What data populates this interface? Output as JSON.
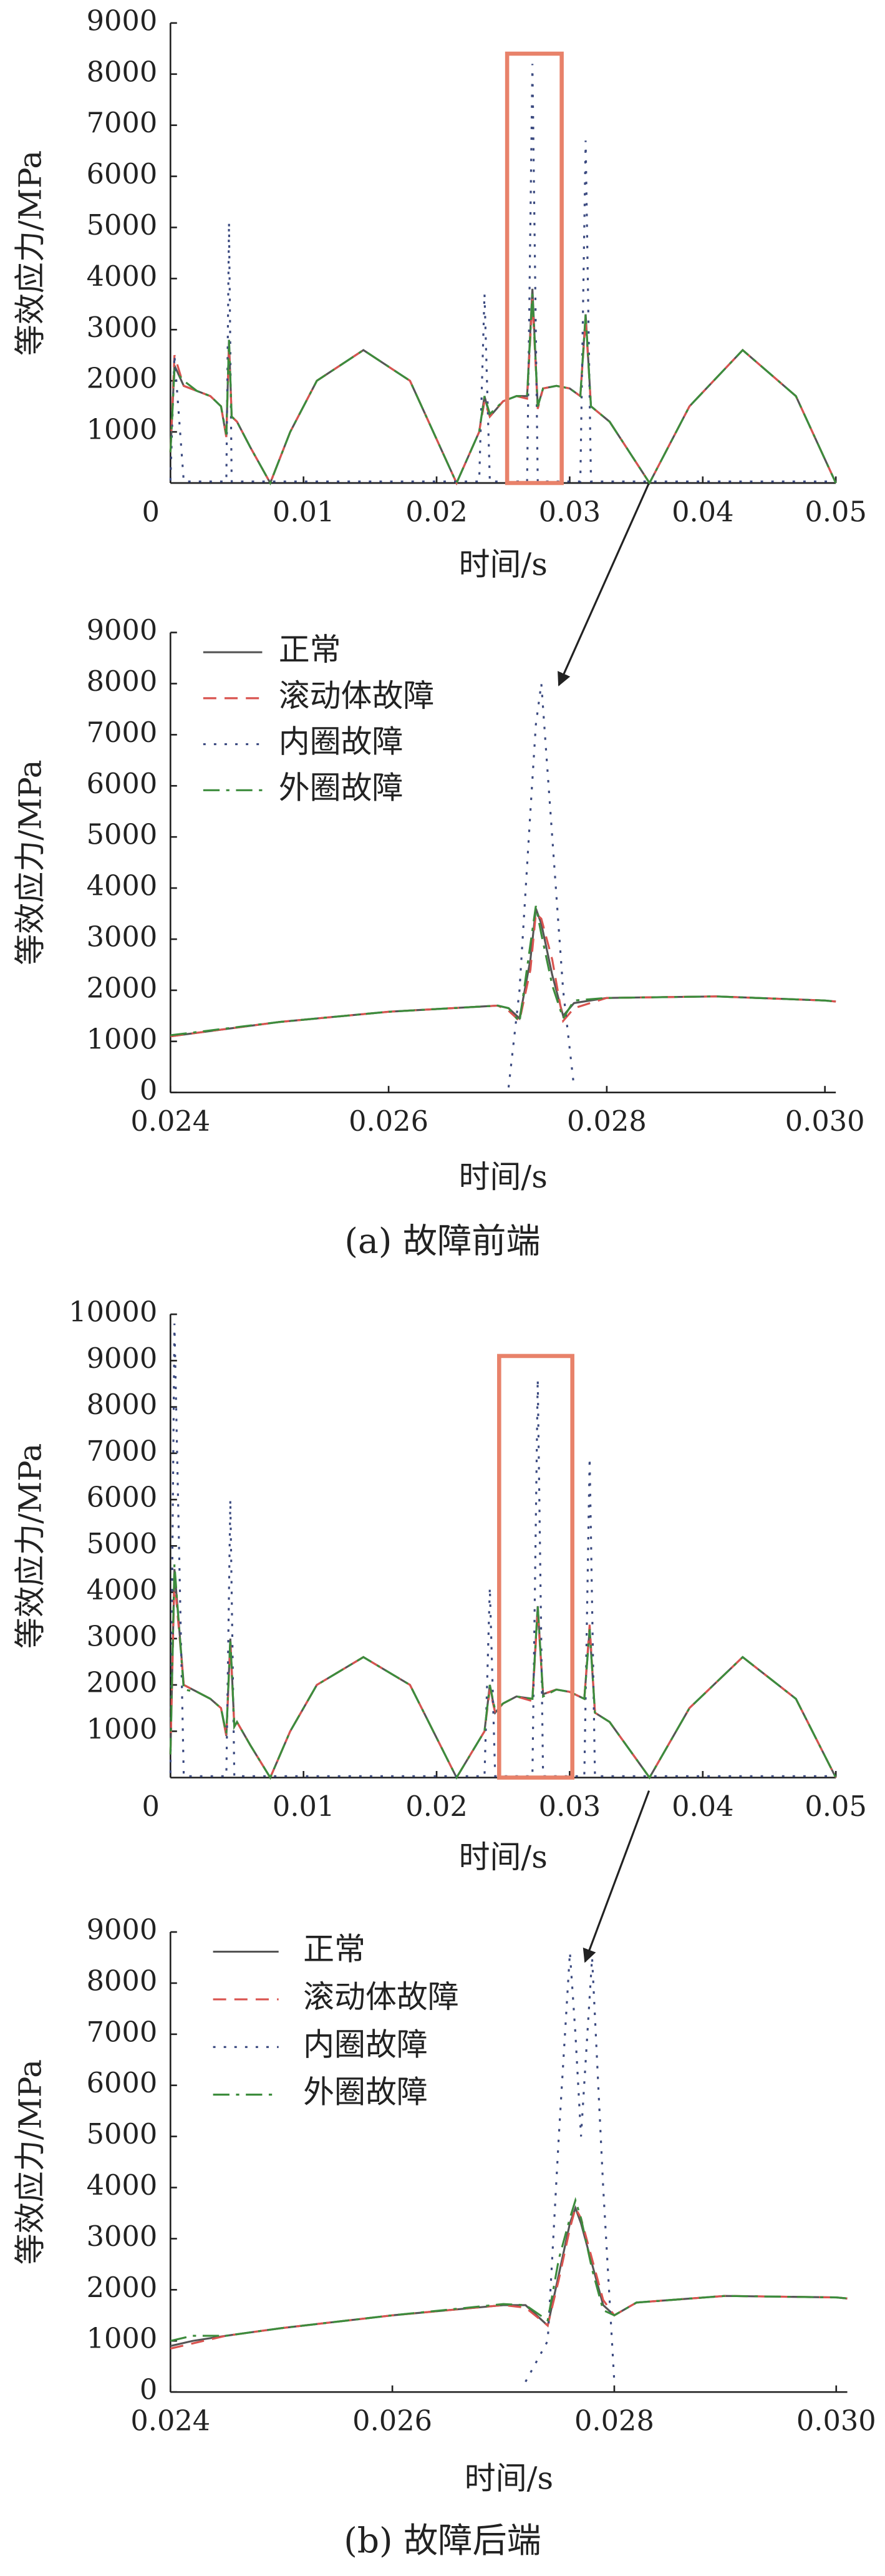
{
  "chart_data": [
    {
      "type": "line",
      "xlabel": "时间/s",
      "ylabel": "等效应力/MPa",
      "x": [
        0,
        0.0003,
        0.001,
        0.002,
        0.003,
        0.0038,
        0.0042,
        0.0044,
        0.0046,
        0.005,
        0.006,
        0.0075,
        0.009,
        0.011,
        0.0145,
        0.018,
        0.0215,
        0.0232,
        0.0236,
        0.024,
        0.025,
        0.026,
        0.0268,
        0.0272,
        0.0276,
        0.028,
        0.029,
        0.03,
        0.0308,
        0.0312,
        0.0316,
        0.033,
        0.036,
        0.039,
        0.043,
        0.047,
        0.05
      ],
      "series": [
        {
          "color": "#555555",
          "dash": "none",
          "values": [
            600,
            2300,
            1900,
            1800,
            1700,
            1500,
            900,
            2800,
            1300,
            1200,
            700,
            0,
            1000,
            2000,
            2600,
            2000,
            0,
            1000,
            1700,
            1300,
            1600,
            1700,
            1700,
            3800,
            1500,
            1850,
            1900,
            1850,
            1700,
            3300,
            1500,
            1200,
            0,
            1500,
            2600,
            1700,
            0
          ]
        },
        {
          "color": "#d9534f",
          "dash": "8,5",
          "values": [
            600,
            2500,
            1900,
            1800,
            1700,
            1500,
            900,
            2700,
            1300,
            1200,
            700,
            0,
            1000,
            2000,
            2600,
            2000,
            0,
            1000,
            1600,
            1300,
            1600,
            1700,
            1650,
            3600,
            1450,
            1850,
            1900,
            1850,
            1700,
            3200,
            1500,
            1200,
            0,
            1500,
            2600,
            1700,
            0
          ]
        },
        {
          "color": "#3b4a80",
          "dash": "1.5,5",
          "values": [
            50,
            2500,
            30,
            30,
            30,
            30,
            30,
            5100,
            30,
            30,
            30,
            30,
            30,
            30,
            30,
            30,
            30,
            30,
            3700,
            30,
            30,
            30,
            30,
            8200,
            30,
            30,
            30,
            30,
            30,
            6700,
            30,
            30,
            30,
            30,
            30,
            30,
            30
          ]
        },
        {
          "color": "#3c8c3c",
          "dash": "10,4,2,4",
          "values": [
            600,
            2200,
            2000,
            1800,
            1700,
            1500,
            950,
            2800,
            1300,
            1200,
            700,
            0,
            1000,
            2000,
            2600,
            2000,
            0,
            1000,
            1700,
            1350,
            1600,
            1700,
            1700,
            3700,
            1500,
            1850,
            1900,
            1850,
            1700,
            3300,
            1500,
            1200,
            0,
            1500,
            2600,
            1700,
            0
          ]
        }
      ],
      "xlim": [
        0,
        0.05
      ],
      "xticks": [
        0,
        0.01,
        0.02,
        0.03,
        0.04,
        0.05
      ],
      "ylim": [
        0,
        9000
      ],
      "yticks": [
        1000,
        2000,
        3000,
        4000,
        5000,
        6000,
        7000,
        8000,
        9000
      ],
      "highlight": {
        "x": [
          0.0253,
          0.0294
        ],
        "y": [
          0,
          8400
        ],
        "color": "#e8826a"
      }
    },
    {
      "type": "line",
      "xlabel": "时间/s",
      "ylabel": "等效应力/MPa",
      "caption": "(a)  故障前端",
      "x": [
        0.024,
        0.025,
        0.026,
        0.027,
        0.0271,
        0.0272,
        0.0273,
        0.02735,
        0.0274,
        0.0275,
        0.0276,
        0.0277,
        0.028,
        0.029,
        0.03,
        0.0301
      ],
      "series": [
        {
          "name": "正常",
          "color": "#555555",
          "dash": "none",
          "values": [
            1100,
            1380,
            1580,
            1700,
            1650,
            1450,
            2600,
            3600,
            3300,
            2300,
            1500,
            1750,
            1850,
            1880,
            1800,
            1780
          ]
        },
        {
          "name": "滚动体故障",
          "color": "#d9534f",
          "dash": "8,5",
          "values": [
            1100,
            1380,
            1580,
            1700,
            1600,
            1400,
            2400,
            3500,
            3400,
            2600,
            1400,
            1650,
            1850,
            1880,
            1800,
            1780
          ]
        },
        {
          "name": "内圈故障",
          "color": "#3b4a80",
          "dash": "1.5,5",
          "values": [
            null,
            null,
            null,
            null,
            100,
            2000,
            5500,
            7200,
            8000,
            5000,
            2000,
            100,
            null,
            null,
            null,
            null
          ]
        },
        {
          "name": "外圈故障",
          "color": "#3c8c3c",
          "dash": "10,4,2,4",
          "values": [
            1120,
            1380,
            1580,
            1700,
            1650,
            1380,
            2900,
            3650,
            3100,
            2100,
            1450,
            1800,
            1850,
            1880,
            1800,
            1780
          ]
        }
      ],
      "xlim": [
        0.024,
        0.0301
      ],
      "xticks": [
        0.024,
        0.026,
        0.028,
        {
          "value": 0.03,
          "label": "0.030"
        }
      ],
      "ylim": [
        0,
        9000
      ],
      "yticks": [
        0,
        1000,
        2000,
        3000,
        4000,
        5000,
        6000,
        7000,
        8000,
        9000
      ]
    },
    {
      "type": "line",
      "xlabel": "时间/s",
      "ylabel": "等效应力/MPa",
      "x": [
        0,
        0.0003,
        0.001,
        0.002,
        0.003,
        0.0038,
        0.0042,
        0.0045,
        0.0048,
        0.005,
        0.006,
        0.0075,
        0.009,
        0.011,
        0.0145,
        0.018,
        0.0215,
        0.0236,
        0.024,
        0.0244,
        0.025,
        0.026,
        0.0272,
        0.0276,
        0.028,
        0.029,
        0.03,
        0.0311,
        0.0315,
        0.0319,
        0.033,
        0.036,
        0.039,
        0.043,
        0.047,
        0.05
      ],
      "series": [
        {
          "color": "#555555",
          "dash": "none",
          "values": [
            500,
            4500,
            2000,
            1850,
            1700,
            1500,
            900,
            3000,
            1100,
            1200,
            700,
            0,
            1000,
            2000,
            2600,
            2000,
            0,
            1000,
            2000,
            1400,
            1600,
            1750,
            1700,
            3700,
            1800,
            1900,
            1850,
            1700,
            3200,
            1400,
            1200,
            0,
            1500,
            2600,
            1700,
            0
          ]
        },
        {
          "color": "#d9534f",
          "dash": "8,5",
          "values": [
            500,
            4300,
            2000,
            1850,
            1700,
            1500,
            900,
            2900,
            1100,
            1200,
            700,
            0,
            1000,
            2000,
            2600,
            2000,
            0,
            1000,
            1900,
            1400,
            1600,
            1750,
            1650,
            3600,
            1800,
            1900,
            1850,
            1700,
            3300,
            1400,
            1200,
            0,
            1500,
            2600,
            1700,
            0
          ]
        },
        {
          "color": "#3b4a80",
          "dash": "1.5,5",
          "values": [
            100,
            9800,
            30,
            30,
            30,
            30,
            30,
            6000,
            30,
            30,
            30,
            30,
            30,
            30,
            30,
            30,
            30,
            30,
            4100,
            30,
            30,
            30,
            30,
            8600,
            30,
            30,
            30,
            30,
            6900,
            30,
            30,
            30,
            30,
            30,
            30,
            30
          ]
        },
        {
          "color": "#3c8c3c",
          "dash": "10,4,2,4",
          "values": [
            500,
            4600,
            1900,
            1850,
            1700,
            1500,
            950,
            3000,
            1100,
            1200,
            700,
            0,
            1000,
            2000,
            2600,
            2000,
            0,
            1000,
            2000,
            1450,
            1600,
            1750,
            1700,
            3700,
            1750,
            1900,
            1850,
            1700,
            3200,
            1400,
            1200,
            0,
            1500,
            2600,
            1700,
            0
          ]
        }
      ],
      "xlim": [
        0,
        0.05
      ],
      "xticks": [
        0,
        0.01,
        0.02,
        0.03,
        0.04,
        0.05
      ],
      "ylim": [
        0,
        10000
      ],
      "yticks": [
        1000,
        2000,
        3000,
        4000,
        5000,
        6000,
        7000,
        8000,
        9000,
        10000
      ],
      "highlight": {
        "x": [
          0.0247,
          0.0302
        ],
        "y": [
          0,
          9100
        ],
        "color": "#e8826a"
      }
    },
    {
      "type": "line",
      "xlabel": "时间/s",
      "ylabel": "等效应力/MPa",
      "caption": "(b)  故障后端",
      "x": [
        0.024,
        0.0242,
        0.0245,
        0.025,
        0.026,
        0.027,
        0.0272,
        0.0274,
        0.0275,
        0.0276,
        0.02765,
        0.0277,
        0.0278,
        0.0279,
        0.028,
        0.0282,
        0.029,
        0.03,
        0.0301
      ],
      "series": [
        {
          "name": "正常",
          "color": "#555555",
          "dash": "none",
          "values": [
            900,
            1000,
            1100,
            1250,
            1500,
            1700,
            1700,
            1300,
            2300,
            3300,
            3600,
            3300,
            2500,
            1700,
            1500,
            1750,
            1880,
            1850,
            1830
          ]
        },
        {
          "name": "滚动体故障",
          "color": "#d9534f",
          "dash": "8,5",
          "values": [
            850,
            950,
            1100,
            1250,
            1500,
            1700,
            1650,
            1300,
            2200,
            3200,
            3600,
            3400,
            2600,
            1800,
            1500,
            1750,
            1880,
            1850,
            1830
          ]
        },
        {
          "name": "内圈故障",
          "color": "#3b4a80",
          "dash": "1.5,5",
          "values": [
            null,
            null,
            null,
            null,
            null,
            null,
            200,
            1000,
            5000,
            8600,
            7000,
            5000,
            8500,
            4000,
            200,
            null,
            null,
            null,
            null
          ]
        },
        {
          "name": "外圈故障",
          "color": "#3c8c3c",
          "dash": "10,4,2,4",
          "values": [
            1000,
            1100,
            1100,
            1250,
            1500,
            1720,
            1700,
            1400,
            2600,
            3400,
            3750,
            3400,
            2400,
            1600,
            1500,
            1750,
            1880,
            1850,
            1830
          ]
        }
      ],
      "xlim": [
        0.024,
        0.0301
      ],
      "xticks": [
        0.024,
        0.026,
        0.028,
        {
          "value": 0.03,
          "label": "0.030"
        }
      ],
      "ylim": [
        0,
        9000
      ],
      "yticks": [
        0,
        1000,
        2000,
        3000,
        4000,
        5000,
        6000,
        7000,
        8000,
        9000
      ]
    }
  ]
}
